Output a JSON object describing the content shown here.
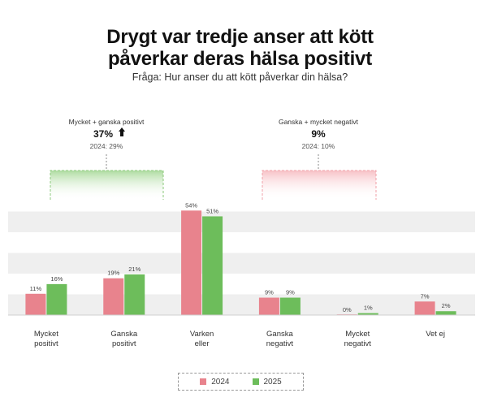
{
  "title_line1": "Drygt var tredje anser att kött",
  "title_line2": "påverkar deras hälsa positivt",
  "subtitle": "Fråga: Hur anser du att kött påverkar din hälsa?",
  "colors": {
    "y2024": "#e8838d",
    "y2025": "#6dbd5b",
    "band": "#efefef",
    "positive_bracket": "#8cc97c",
    "negative_bracket": "#f0a0a8"
  },
  "summaries": {
    "positive": {
      "heading": "Mycket + ganska positivt",
      "value": "37%",
      "trend_icon": "arrow-up-icon",
      "previous": "2024: 29%"
    },
    "negative": {
      "heading": "Ganska + mycket negativt",
      "value": "9%",
      "previous": "2024: 10%"
    }
  },
  "legend": {
    "items": [
      {
        "label": "2024",
        "color": "#e8838d"
      },
      {
        "label": "2025",
        "color": "#6dbd5b"
      }
    ]
  },
  "chart_data": {
    "type": "bar",
    "categories": [
      [
        "Mycket",
        "positivt"
      ],
      [
        "Ganska",
        "positivt"
      ],
      [
        "Varken",
        "eller"
      ],
      [
        "Ganska",
        "negativt"
      ],
      [
        "Mycket",
        "negativt"
      ],
      [
        "Vet ej"
      ]
    ],
    "series": [
      {
        "name": "2024",
        "values": [
          11,
          19,
          54,
          9,
          0,
          7
        ],
        "labels": [
          "11%",
          "19%",
          "54%",
          "9%",
          "0%",
          "7%"
        ]
      },
      {
        "name": "2025",
        "values": [
          16,
          21,
          51,
          9,
          1,
          2
        ],
        "labels": [
          "16%",
          "21%",
          "51%",
          "9%",
          "1%",
          "2%"
        ]
      }
    ],
    "ylim": [
      0,
      60
    ],
    "grid": "alternating horizontal bands",
    "legend_position": "bottom-center"
  }
}
